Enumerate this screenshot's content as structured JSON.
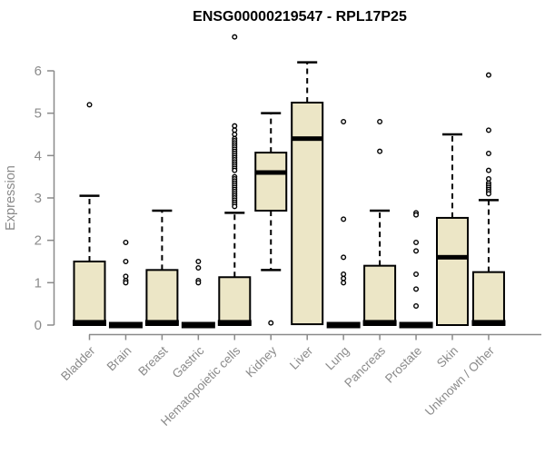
{
  "chart_data": {
    "type": "boxplot",
    "title": "ENSG00000219547 - RPL17P25",
    "ylabel": "Expression",
    "xlabel": "",
    "yticks": [
      0,
      1,
      2,
      3,
      4,
      5,
      6
    ],
    "ylim": [
      0,
      6.9
    ],
    "grid": false,
    "legend": "none",
    "colors": {
      "box_fill": "#ece6c6",
      "box_stroke": "#000000",
      "median": "#000000",
      "whisker": "#000000",
      "axis": "#8a8a8a",
      "tick_label": "#8a8a8a",
      "title": "#000000"
    },
    "categories": [
      "Bladder",
      "Brain",
      "Breast",
      "Gastric",
      "Hematopoietic cells",
      "Kidney",
      "Liver",
      "Lung",
      "Pancreas",
      "Prostate",
      "Skin",
      "Unknown / Other"
    ],
    "series": [
      {
        "name": "Bladder",
        "low": 0,
        "q1": 0,
        "median": 0.05,
        "q3": 1.5,
        "high": 3.05,
        "outliers": [
          5.2
        ]
      },
      {
        "name": "Brain",
        "low": 0,
        "q1": 0,
        "median": 0,
        "q3": 0,
        "high": 0,
        "outliers": [
          1.95,
          1.5,
          1.15,
          1.05,
          1.0
        ]
      },
      {
        "name": "Breast",
        "low": 0,
        "q1": 0,
        "median": 0.05,
        "q3": 1.3,
        "high": 2.7,
        "outliers": []
      },
      {
        "name": "Gastric",
        "low": 0,
        "q1": 0,
        "median": 0,
        "q3": 0,
        "high": 0,
        "outliers": [
          1.5,
          1.35,
          1.05,
          1.0
        ]
      },
      {
        "name": "Hematopoietic cells",
        "low": 0,
        "q1": 0,
        "median": 0.05,
        "q3": 1.13,
        "high": 2.65,
        "outliers": [
          6.8,
          4.7,
          4.6,
          4.5,
          4.4,
          4.35,
          4.3,
          4.25,
          4.2,
          4.15,
          4.1,
          4.05,
          4.0,
          3.95,
          3.9,
          3.85,
          3.8,
          3.75,
          3.7,
          3.65,
          3.5,
          3.45,
          3.4,
          3.35,
          3.3,
          3.25,
          3.2,
          3.15,
          3.1,
          3.05,
          3.0,
          2.95,
          2.9,
          2.85,
          2.8
        ]
      },
      {
        "name": "Kidney",
        "low": 1.3,
        "q1": 2.7,
        "median": 3.6,
        "q3": 4.07,
        "high": 5.0,
        "outliers": [
          0.05
        ]
      },
      {
        "name": "Liver",
        "low": 0.02,
        "q1": 0.02,
        "median": 4.4,
        "q3": 5.25,
        "high": 6.2,
        "outliers": []
      },
      {
        "name": "Lung",
        "low": 0,
        "q1": 0,
        "median": 0,
        "q3": 0,
        "high": 0,
        "outliers": [
          4.8,
          2.5,
          1.6,
          1.2,
          1.1,
          1.0
        ]
      },
      {
        "name": "Pancreas",
        "low": 0,
        "q1": 0,
        "median": 0.05,
        "q3": 1.4,
        "high": 2.7,
        "outliers": [
          4.8,
          4.1
        ]
      },
      {
        "name": "Prostate",
        "low": 0,
        "q1": 0,
        "median": 0,
        "q3": 0,
        "high": 0,
        "outliers": [
          2.65,
          2.6,
          1.95,
          1.75,
          1.2,
          0.85,
          0.45
        ]
      },
      {
        "name": "Skin",
        "low": 0,
        "q1": 0,
        "median": 1.6,
        "q3": 2.53,
        "high": 4.5,
        "outliers": []
      },
      {
        "name": "Unknown / Other",
        "low": 0,
        "q1": 0,
        "median": 0.05,
        "q3": 1.25,
        "high": 2.95,
        "outliers": [
          5.9,
          4.6,
          4.05,
          3.65,
          3.45,
          3.35,
          3.3,
          3.25,
          3.2,
          3.15,
          3.1
        ]
      }
    ]
  }
}
